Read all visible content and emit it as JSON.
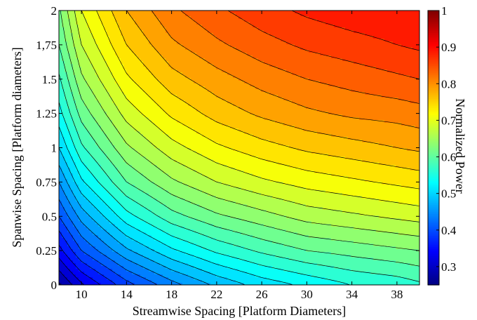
{
  "chart_data": {
    "type": "heatmap",
    "subtype": "filled-contour",
    "title": "",
    "xlabel": "Streamwise Spacing [Platform Diameters]",
    "ylabel": "Spanwise Spacing [Platform diameters]",
    "xlim": [
      8,
      40
    ],
    "ylim": [
      0,
      2
    ],
    "x_ticks": [
      10,
      14,
      18,
      22,
      26,
      30,
      34,
      38
    ],
    "y_ticks": [
      0,
      0.25,
      0.5,
      0.75,
      1,
      1.25,
      1.5,
      1.75,
      2
    ],
    "y_tick_labels": [
      "0",
      "0.25",
      "0.5",
      "0.75",
      "1",
      "1.25",
      "1.5",
      "1,75",
      "2"
    ],
    "colorbar": {
      "label": "Normalized Power",
      "range": [
        0.25,
        1
      ],
      "ticks": [
        0.3,
        0.4,
        0.5,
        0.6,
        0.7,
        0.8,
        0.9,
        1
      ],
      "tick_labels": [
        "0.3",
        "0.4",
        "0.5",
        "0.6",
        "0.7",
        "0.8",
        "0.9",
        "1"
      ],
      "colormap": "jet"
    },
    "contour_interval": 0.025,
    "grid_x": [
      8,
      10,
      14,
      18,
      22,
      26,
      30,
      34,
      38,
      40
    ],
    "grid_y": [
      0,
      0.25,
      0.5,
      0.75,
      1,
      1.25,
      1.5,
      1.75,
      2
    ],
    "values": [
      [
        0.27,
        0.32,
        0.39,
        0.44,
        0.48,
        0.51,
        0.53,
        0.55,
        0.56,
        0.57
      ],
      [
        0.34,
        0.4,
        0.47,
        0.52,
        0.555,
        0.58,
        0.6,
        0.61,
        0.62,
        0.625
      ],
      [
        0.4,
        0.46,
        0.54,
        0.59,
        0.62,
        0.64,
        0.66,
        0.67,
        0.68,
        0.685
      ],
      [
        0.45,
        0.52,
        0.6,
        0.645,
        0.675,
        0.695,
        0.71,
        0.72,
        0.73,
        0.735
      ],
      [
        0.5,
        0.57,
        0.645,
        0.69,
        0.72,
        0.74,
        0.755,
        0.765,
        0.775,
        0.78
      ],
      [
        0.54,
        0.61,
        0.685,
        0.73,
        0.76,
        0.78,
        0.795,
        0.805,
        0.81,
        0.815
      ],
      [
        0.57,
        0.645,
        0.72,
        0.765,
        0.79,
        0.81,
        0.825,
        0.835,
        0.845,
        0.85
      ],
      [
        0.6,
        0.675,
        0.75,
        0.795,
        0.82,
        0.84,
        0.855,
        0.865,
        0.875,
        0.88
      ],
      [
        0.62,
        0.7,
        0.775,
        0.82,
        0.845,
        0.865,
        0.88,
        0.89,
        0.895,
        0.9
      ]
    ]
  }
}
